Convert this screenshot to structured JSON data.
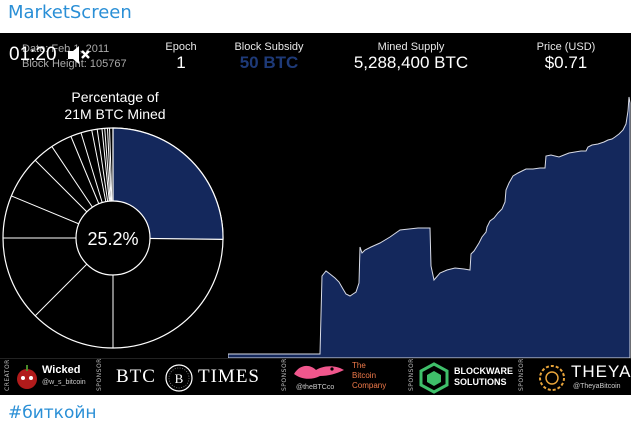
{
  "channel": {
    "title": "MarketScreen"
  },
  "video": {
    "timer": "01:20",
    "date_label": "Date: Feb 1, 2011",
    "block_height": "Block Height: 105767",
    "stats": {
      "epoch_label": "Epoch",
      "epoch_value": "1",
      "subsidy_label": "Block Subsidy",
      "subsidy_value": "50 BTC",
      "supply_label": "Mined Supply",
      "supply_value": "5,288,400 BTC",
      "price_label": "Price (USD)",
      "price_value": "$0.71"
    },
    "pie": {
      "title_line1": "Percentage of",
      "title_line2": "21M BTC Mined",
      "center_label": "25.2%",
      "fill_fraction": 0.252,
      "fill_color": "#14285c"
    },
    "chart_data": {
      "type": "area",
      "x": [
        "start",
        "end"
      ],
      "note_color": "#14285c"
    },
    "sponsors": {
      "creator_tag": "CREATOR",
      "wicked_name": "Wicked",
      "wicked_handle": "@w_s_bitcoin",
      "sponsor_tag": "SPONSOR",
      "btctimes_left": "BTC",
      "btctimes_mark": "B",
      "btctimes_right": "TIMES",
      "bitcoin_co_line1": "The",
      "bitcoin_co_line2": "Bitcoin",
      "bitcoin_co_line3": "Company",
      "bitcoin_co_handle": "@theBTCco",
      "blockware_line1": "BLOCKWARE",
      "blockware_line2": "SOLUTIONS",
      "theya_name": "THEYA",
      "theya_handle": "@TheyaBitcoin"
    }
  },
  "footer": {
    "hashtag": "#биткойн"
  }
}
